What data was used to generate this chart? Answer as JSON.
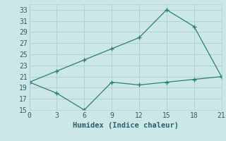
{
  "x": [
    0,
    3,
    6,
    9,
    12,
    15,
    18,
    21
  ],
  "line1": [
    20,
    22,
    24,
    26,
    28,
    33,
    30,
    21
  ],
  "line2": [
    20,
    18,
    15,
    20,
    19.5,
    20,
    20.5,
    21
  ],
  "xlabel": "Humidex (Indice chaleur)",
  "ylim": [
    15,
    34
  ],
  "xlim": [
    0,
    21
  ],
  "yticks": [
    15,
    17,
    19,
    21,
    23,
    25,
    27,
    29,
    31,
    33
  ],
  "xticks": [
    0,
    3,
    6,
    9,
    12,
    15,
    18,
    21
  ],
  "line_color": "#2d7d78",
  "bg_color": "#cce8e6",
  "grid_color": "#aed4d1",
  "tick_color": "#2d5f6a",
  "label_fontsize": 7.5,
  "tick_fontsize": 7
}
